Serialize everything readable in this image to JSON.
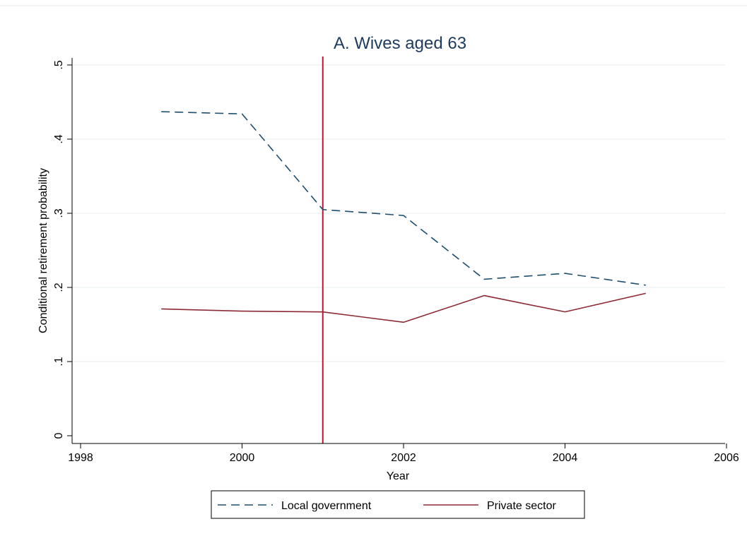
{
  "chart_data": {
    "type": "line",
    "title": "A. Wives aged 63",
    "xlabel": "Year",
    "ylabel": "Conditional retirement probability",
    "xlim": [
      1998,
      2006
    ],
    "ylim": [
      0,
      0.5
    ],
    "x_ticks": [
      1998,
      2000,
      2002,
      2004,
      2006
    ],
    "x_tick_labels": [
      "1998",
      "2000",
      "2002",
      "2004",
      "2006"
    ],
    "y_ticks": [
      0,
      0.1,
      0.2,
      0.3,
      0.4,
      0.5
    ],
    "y_tick_labels": [
      "0",
      ".1",
      ".2",
      ".3",
      ".4",
      ".5"
    ],
    "grid": "horizontal",
    "legend_position": "bottom",
    "vertical_line": {
      "x": 2001,
      "color": "#c8102e"
    },
    "series": [
      {
        "name": "Local government",
        "style": "dashed",
        "color": "#1f4e6e",
        "x": [
          1999,
          2000,
          2001,
          2002,
          2003,
          2004,
          2005
        ],
        "y": [
          0.437,
          0.434,
          0.305,
          0.297,
          0.211,
          0.219,
          0.203
        ]
      },
      {
        "name": "Private sector",
        "style": "solid",
        "color": "#8b2a35",
        "x": [
          1999,
          2000,
          2001,
          2002,
          2003,
          2004,
          2005
        ],
        "y": [
          0.171,
          0.168,
          0.167,
          0.153,
          0.189,
          0.167,
          0.192
        ]
      }
    ]
  }
}
